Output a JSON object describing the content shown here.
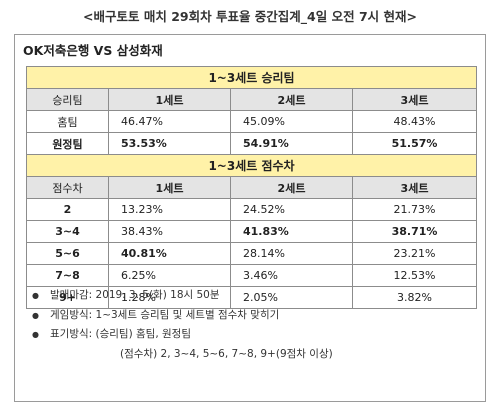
{
  "title": "<배구토토 매치 29회차 투표율 중간집계_4일 오전 7시 현재>",
  "match": "OK저축은행 VS 삼성화재",
  "section1": {
    "title": "1~3세트 승리팀",
    "headers": [
      "승리팀",
      "1세트",
      "2세트",
      "3세트"
    ],
    "rows": [
      {
        "label": "홈팀",
        "values": [
          "46.47%",
          "45.09%",
          "48.43%"
        ]
      },
      {
        "label": "원정팀",
        "values": [
          "53.53%",
          "54.91%",
          "51.57%"
        ]
      }
    ]
  },
  "section2": {
    "title": "1~3세트 점수차",
    "headers": [
      "점수차",
      "1세트",
      "2세트",
      "3세트"
    ],
    "rows": [
      {
        "label": "2",
        "values": [
          "13.23%",
          "24.52%",
          "21.73%"
        ]
      },
      {
        "label": "3~4",
        "values": [
          "38.43%",
          "41.83%",
          "38.71%"
        ]
      },
      {
        "label": "5~6",
        "values": [
          "40.81%",
          "28.14%",
          "23.21%"
        ]
      },
      {
        "label": "7~8",
        "values": [
          "6.25%",
          "3.46%",
          "12.53%"
        ]
      },
      {
        "label": "9+",
        "values": [
          "1.28%",
          "2.05%",
          "3.82%"
        ]
      }
    ]
  },
  "notes": {
    "bullet": "●",
    "deadline": "발매마감: 2019. 3. 5(화) 18시 50분",
    "method": "게임방식: 1~3세트 승리팀 및 세트별 점수차 맞히기",
    "display": "표기방식: (승리팀) 홈팀, 원정팀",
    "display_sub": "(점수차) 2, 3~4, 5~6, 7~8, 9+(9점차 이상)"
  }
}
